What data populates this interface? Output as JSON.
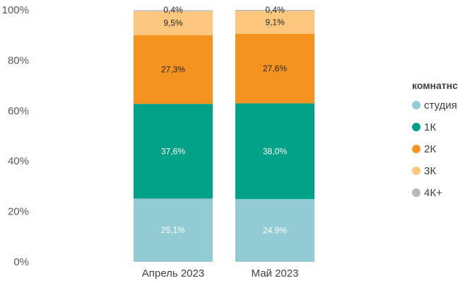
{
  "chart_data": {
    "type": "bar",
    "stacked": true,
    "percent": true,
    "categories": [
      "Апрель 2023",
      "Май 2023"
    ],
    "y_ticks": [
      "0%",
      "20%",
      "40%",
      "60%",
      "80%",
      "100%"
    ],
    "ylim": [
      0,
      100
    ],
    "grid": false,
    "legend": {
      "title": "комнатнс",
      "position": "right",
      "items": [
        "студия",
        "1К",
        "2К",
        "3К",
        "4К+"
      ]
    },
    "series": [
      {
        "name": "студия",
        "color": "#93cbd4",
        "label_color": "#ffffff",
        "values": [
          25.1,
          24.9
        ],
        "labels": [
          "25,1%",
          "24,9%"
        ]
      },
      {
        "name": "1К",
        "color": "#00a186",
        "label_color": "#ffffff",
        "values": [
          37.6,
          38.0
        ],
        "labels": [
          "37,6%",
          "38,0%"
        ]
      },
      {
        "name": "2К",
        "color": "#f59320",
        "label_color": "#262626",
        "values": [
          27.3,
          27.6
        ],
        "labels": [
          "27,3%",
          "27,6%"
        ]
      },
      {
        "name": "3К",
        "color": "#fdc77d",
        "label_color": "#262626",
        "values": [
          9.5,
          9.1
        ],
        "labels": [
          "9,5%",
          "9,1%"
        ]
      },
      {
        "name": "4К+",
        "color": "#b5babb",
        "label_color": "#262626",
        "values": [
          0.4,
          0.4
        ],
        "labels": [
          "0,4%",
          "0,4%"
        ]
      }
    ]
  }
}
